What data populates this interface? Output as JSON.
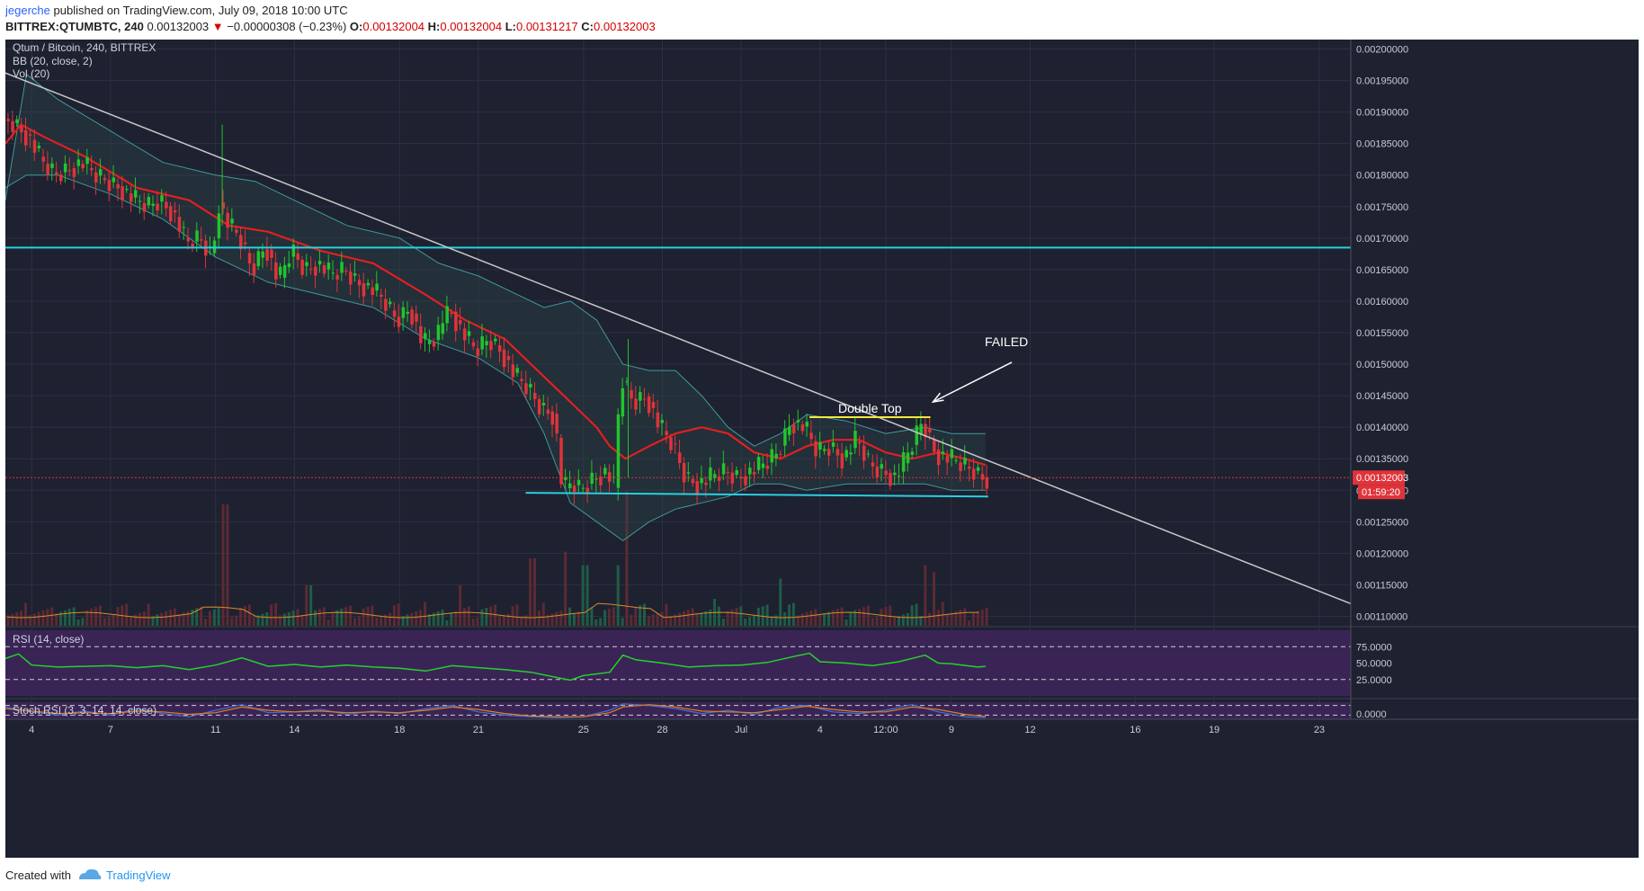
{
  "header": {
    "author": "jegerche",
    "published": "published on TradingView.com, July 09, 2018 10:00 UTC",
    "symbol": "BITTREX:QTUMBTC, 240",
    "price": "0.00132003",
    "change": "−0.00000308 (−0.23%)",
    "o_label": "O:",
    "o_value": "0.00132004",
    "h_label": "H:",
    "h_value": "0.00132004",
    "l_label": "L:",
    "l_value": "0.00131217",
    "c_label": "C:",
    "c_value": "0.00132003"
  },
  "legend": {
    "title": "Qtum / Bitcoin, 240, BITTREX",
    "bb": "BB (20, close, 2)",
    "vol": "Vol (20)",
    "rsi": "RSI (14, close)",
    "stoch": "Stoch RSI (3, 3, 14, 14, close)"
  },
  "colors": {
    "background": "#1e2130",
    "up": "#21c52b",
    "down": "#e0333a",
    "bb_basis": "#e02020",
    "bb_band": "#3f9a9a",
    "trendline": "#c8c8c8",
    "support": "#29d0e0",
    "double_top": "#f2ea3a",
    "rsi_line": "#23d22a",
    "rsi_panel": "#3a2456",
    "stoch_k": "#3f73d8",
    "stoch_d": "#e07f20",
    "price_tag": "#e0333a"
  },
  "chart_data": {
    "type": "candlestick",
    "title": "Qtum / Bitcoin, 240, BITTREX",
    "y_ticks": [
      "0.00200000",
      "0.00195000",
      "0.00190000",
      "0.00185000",
      "0.00180000",
      "0.00175000",
      "0.00170000",
      "0.00165000",
      "0.00160000",
      "0.00155000",
      "0.00150000",
      "0.00145000",
      "0.00140000",
      "0.00135000",
      "0.00130000",
      "0.00125000",
      "0.00120000",
      "0.00115000",
      "0.00110000"
    ],
    "y_tick_values": [
      0.002,
      0.00195,
      0.0019,
      0.00185,
      0.0018,
      0.00175,
      0.0017,
      0.00165,
      0.0016,
      0.00155,
      0.0015,
      0.00145,
      0.0014,
      0.00135,
      0.0013,
      0.00125,
      0.0012,
      0.00115,
      0.0011
    ],
    "ylim": [
      0.001085,
      0.002015
    ],
    "x_ticks": [
      {
        "label": "4",
        "day": 4
      },
      {
        "label": "7",
        "day": 7
      },
      {
        "label": "11",
        "day": 11
      },
      {
        "label": "14",
        "day": 14
      },
      {
        "label": "18",
        "day": 18
      },
      {
        "label": "21",
        "day": 21
      },
      {
        "label": "25",
        "day": 25
      },
      {
        "label": "28",
        "day": 28
      },
      {
        "label": "Jul",
        "day": 31
      },
      {
        "label": "4",
        "day": 34
      },
      {
        "label": "12:00",
        "day": 36.5
      },
      {
        "label": "9",
        "day": 39
      },
      {
        "label": "12",
        "day": 42
      },
      {
        "label": "16",
        "day": 46
      },
      {
        "label": "19",
        "day": 49
      },
      {
        "label": "23",
        "day": 53
      }
    ],
    "x_range_days": [
      3,
      54.2
    ],
    "last_price": "0.00132003",
    "countdown": "01:59:20",
    "candle_path": [
      [
        3.0,
        0.00189
      ],
      [
        3.5,
        0.00188
      ],
      [
        4.0,
        0.00186
      ],
      [
        4.5,
        0.00182
      ],
      [
        5.0,
        0.0018
      ],
      [
        5.5,
        0.00181
      ],
      [
        6.0,
        0.00182
      ],
      [
        6.5,
        0.0018
      ],
      [
        7.0,
        0.00179
      ],
      [
        7.5,
        0.00178
      ],
      [
        8.0,
        0.00176
      ],
      [
        8.5,
        0.00175
      ],
      [
        9.0,
        0.00176
      ],
      [
        9.5,
        0.00174
      ],
      [
        10.0,
        0.00169
      ],
      [
        10.5,
        0.0017
      ],
      [
        11.0,
        0.00167
      ],
      [
        11.2,
        0.00176
      ],
      [
        11.6,
        0.00172
      ],
      [
        12.0,
        0.0017
      ],
      [
        12.5,
        0.00165
      ],
      [
        13.0,
        0.00169
      ],
      [
        13.5,
        0.00163
      ],
      [
        14.0,
        0.00168
      ],
      [
        14.5,
        0.00165
      ],
      [
        15.0,
        0.00166
      ],
      [
        15.5,
        0.00164
      ],
      [
        16.0,
        0.00165
      ],
      [
        16.5,
        0.00163
      ],
      [
        17.0,
        0.00162
      ],
      [
        17.5,
        0.0016
      ],
      [
        18.0,
        0.00157
      ],
      [
        18.5,
        0.00159
      ],
      [
        19.0,
        0.00153
      ],
      [
        19.5,
        0.00154
      ],
      [
        20.0,
        0.00159
      ],
      [
        20.5,
        0.00155
      ],
      [
        21.0,
        0.00152
      ],
      [
        21.5,
        0.00154
      ],
      [
        22.0,
        0.00152
      ],
      [
        22.5,
        0.00148
      ],
      [
        23.0,
        0.00146
      ],
      [
        23.5,
        0.00143
      ],
      [
        24.0,
        0.00142
      ],
      [
        24.3,
        0.0013
      ],
      [
        24.7,
        0.00131
      ],
      [
        25.0,
        0.0013
      ],
      [
        25.5,
        0.00132
      ],
      [
        26.0,
        0.00133
      ],
      [
        26.3,
        0.0013
      ],
      [
        26.5,
        0.00148
      ],
      [
        27.0,
        0.00144
      ],
      [
        27.5,
        0.00145
      ],
      [
        28.0,
        0.0014
      ],
      [
        28.5,
        0.00137
      ],
      [
        29.0,
        0.00132
      ],
      [
        29.5,
        0.00131
      ],
      [
        30.0,
        0.00132
      ],
      [
        30.5,
        0.00133
      ],
      [
        31.0,
        0.00132
      ],
      [
        31.5,
        0.00133
      ],
      [
        32.0,
        0.00134
      ],
      [
        32.5,
        0.00136
      ],
      [
        33.0,
        0.00141
      ],
      [
        33.5,
        0.0014
      ],
      [
        34.0,
        0.00136
      ],
      [
        34.5,
        0.00137
      ],
      [
        35.0,
        0.00135
      ],
      [
        35.5,
        0.00138
      ],
      [
        36.0,
        0.00134
      ],
      [
        36.5,
        0.00133
      ],
      [
        37.0,
        0.00132
      ],
      [
        37.5,
        0.00136
      ],
      [
        38.0,
        0.00141
      ],
      [
        38.5,
        0.00136
      ],
      [
        39.0,
        0.00135
      ],
      [
        39.5,
        0.00134
      ],
      [
        40.0,
        0.00133
      ],
      [
        40.3,
        0.00132
      ]
    ],
    "bb_basis": [
      [
        3.0,
        0.00185
      ],
      [
        3.6,
        0.00188
      ],
      [
        4.5,
        0.00186
      ],
      [
        6.0,
        0.00183
      ],
      [
        8.0,
        0.00178
      ],
      [
        10.0,
        0.00176
      ],
      [
        11.5,
        0.00172
      ],
      [
        13.0,
        0.00171
      ],
      [
        15.0,
        0.00168
      ],
      [
        17.0,
        0.00166
      ],
      [
        19.0,
        0.00161
      ],
      [
        20.5,
        0.00157
      ],
      [
        22.0,
        0.00154
      ],
      [
        23.5,
        0.00148
      ],
      [
        24.5,
        0.00144
      ],
      [
        25.5,
        0.0014
      ],
      [
        26.0,
        0.00137
      ],
      [
        26.6,
        0.00135
      ],
      [
        27.5,
        0.00137
      ],
      [
        28.5,
        0.00139
      ],
      [
        29.5,
        0.0014
      ],
      [
        30.5,
        0.00139
      ],
      [
        31.5,
        0.00136
      ],
      [
        32.5,
        0.00135
      ],
      [
        33.5,
        0.00137
      ],
      [
        34.5,
        0.00138
      ],
      [
        35.5,
        0.00138
      ],
      [
        36.5,
        0.00136
      ],
      [
        37.5,
        0.00135
      ],
      [
        38.5,
        0.00136
      ],
      [
        39.5,
        0.00135
      ],
      [
        40.3,
        0.00134
      ]
    ],
    "bb_upper": [
      [
        3.0,
        0.00176
      ],
      [
        3.8,
        0.00196
      ],
      [
        5.0,
        0.00192
      ],
      [
        7.0,
        0.00187
      ],
      [
        9.0,
        0.00182
      ],
      [
        11.0,
        0.0018
      ],
      [
        12.5,
        0.00179
      ],
      [
        14.0,
        0.00176
      ],
      [
        16.0,
        0.00172
      ],
      [
        18.0,
        0.0017
      ],
      [
        19.5,
        0.00166
      ],
      [
        21.0,
        0.00164
      ],
      [
        22.5,
        0.00161
      ],
      [
        23.5,
        0.00159
      ],
      [
        24.5,
        0.0016
      ],
      [
        25.5,
        0.00157
      ],
      [
        26.5,
        0.0015
      ],
      [
        27.5,
        0.00149
      ],
      [
        28.5,
        0.00149
      ],
      [
        29.5,
        0.00145
      ],
      [
        30.5,
        0.0014
      ],
      [
        31.5,
        0.00137
      ],
      [
        32.5,
        0.00139
      ],
      [
        33.5,
        0.00142
      ],
      [
        35.0,
        0.00141
      ],
      [
        36.5,
        0.00139
      ],
      [
        38.0,
        0.0014
      ],
      [
        39.0,
        0.00139
      ],
      [
        40.3,
        0.00139
      ]
    ],
    "bb_lower": [
      [
        3.0,
        0.00178
      ],
      [
        3.8,
        0.0018
      ],
      [
        5.0,
        0.0018
      ],
      [
        7.0,
        0.00177
      ],
      [
        9.0,
        0.00173
      ],
      [
        11.0,
        0.00167
      ],
      [
        13.0,
        0.00163
      ],
      [
        15.0,
        0.00161
      ],
      [
        17.0,
        0.00159
      ],
      [
        19.0,
        0.00154
      ],
      [
        21.0,
        0.00151
      ],
      [
        22.5,
        0.00147
      ],
      [
        23.5,
        0.00139
      ],
      [
        24.5,
        0.00128
      ],
      [
        25.5,
        0.00125
      ],
      [
        26.5,
        0.00122
      ],
      [
        27.5,
        0.00125
      ],
      [
        28.5,
        0.00127
      ],
      [
        29.5,
        0.00128
      ],
      [
        30.5,
        0.00129
      ],
      [
        31.5,
        0.00131
      ],
      [
        32.5,
        0.00131
      ],
      [
        33.5,
        0.0013
      ],
      [
        35.0,
        0.00131
      ],
      [
        36.5,
        0.00131
      ],
      [
        38.0,
        0.00131
      ],
      [
        39.0,
        0.0013
      ],
      [
        40.3,
        0.0013
      ]
    ],
    "volume_spikes": [
      [
        11.3,
        0.9
      ],
      [
        24.2,
        0.55
      ],
      [
        25.0,
        0.45
      ],
      [
        26.3,
        0.45
      ],
      [
        26.6,
        1.0
      ],
      [
        32.5,
        0.35
      ],
      [
        38.0,
        0.45
      ],
      [
        38.3,
        0.4
      ],
      [
        23.0,
        0.5
      ],
      [
        14.5,
        0.3
      ],
      [
        20.3,
        0.3
      ],
      [
        30.0,
        0.2
      ]
    ],
    "rsi": {
      "ticks": [
        "75.0000",
        "50.0000",
        "25.0000"
      ],
      "tick_values": [
        75,
        50,
        25
      ],
      "series": [
        [
          3.0,
          57
        ],
        [
          3.5,
          64
        ],
        [
          4.0,
          47
        ],
        [
          5.0,
          44
        ],
        [
          6.0,
          45
        ],
        [
          7.0,
          46
        ],
        [
          8.0,
          43
        ],
        [
          9.0,
          46
        ],
        [
          10.0,
          40
        ],
        [
          11.0,
          47
        ],
        [
          12.0,
          58
        ],
        [
          13.0,
          45
        ],
        [
          14.0,
          48
        ],
        [
          15.0,
          44
        ],
        [
          16.0,
          47
        ],
        [
          17.0,
          44
        ],
        [
          18.0,
          42
        ],
        [
          19.0,
          38
        ],
        [
          20.0,
          46
        ],
        [
          21.0,
          43
        ],
        [
          22.0,
          40
        ],
        [
          23.0,
          36
        ],
        [
          24.0,
          28
        ],
        [
          24.5,
          24
        ],
        [
          25.0,
          31
        ],
        [
          26.0,
          36
        ],
        [
          26.5,
          62
        ],
        [
          27.0,
          55
        ],
        [
          28.0,
          50
        ],
        [
          29.0,
          44
        ],
        [
          30.0,
          46
        ],
        [
          31.0,
          47
        ],
        [
          32.0,
          51
        ],
        [
          33.0,
          60
        ],
        [
          33.6,
          65
        ],
        [
          34.0,
          52
        ],
        [
          35.0,
          50
        ],
        [
          36.0,
          46
        ],
        [
          37.0,
          52
        ],
        [
          38.0,
          62
        ],
        [
          38.5,
          50
        ],
        [
          39.0,
          49
        ],
        [
          40.0,
          44
        ],
        [
          40.3,
          45
        ]
      ],
      "ylim": [
        0,
        100
      ]
    },
    "stoch": {
      "ticks": [
        "0.0000"
      ],
      "k": [
        [
          3.0,
          70
        ],
        [
          4.0,
          40
        ],
        [
          5.0,
          20
        ],
        [
          6.0,
          45
        ],
        [
          7.0,
          20
        ],
        [
          8.0,
          60
        ],
        [
          9.0,
          30
        ],
        [
          10.0,
          10
        ],
        [
          11.0,
          50
        ],
        [
          12.0,
          85
        ],
        [
          13.0,
          35
        ],
        [
          14.0,
          40
        ],
        [
          15.0,
          55
        ],
        [
          16.0,
          25
        ],
        [
          17.0,
          45
        ],
        [
          18.0,
          30
        ],
        [
          19.0,
          60
        ],
        [
          20.0,
          80
        ],
        [
          21.0,
          40
        ],
        [
          22.0,
          20
        ],
        [
          23.0,
          10
        ],
        [
          24.0,
          5
        ],
        [
          25.0,
          10
        ],
        [
          26.0,
          50
        ],
        [
          26.5,
          90
        ],
        [
          27.5,
          80
        ],
        [
          28.5,
          60
        ],
        [
          29.5,
          30
        ],
        [
          30.5,
          50
        ],
        [
          31.5,
          25
        ],
        [
          32.5,
          70
        ],
        [
          33.5,
          80
        ],
        [
          34.5,
          40
        ],
        [
          35.5,
          30
        ],
        [
          36.5,
          50
        ],
        [
          37.5,
          85
        ],
        [
          38.5,
          40
        ],
        [
          39.5,
          10
        ],
        [
          40.3,
          5
        ]
      ],
      "d": [
        [
          3.0,
          60
        ],
        [
          4.0,
          45
        ],
        [
          5.0,
          30
        ],
        [
          6.0,
          35
        ],
        [
          7.0,
          30
        ],
        [
          8.0,
          45
        ],
        [
          9.0,
          40
        ],
        [
          10.0,
          25
        ],
        [
          11.0,
          35
        ],
        [
          12.0,
          70
        ],
        [
          13.0,
          50
        ],
        [
          14.0,
          40
        ],
        [
          15.0,
          45
        ],
        [
          16.0,
          35
        ],
        [
          17.0,
          40
        ],
        [
          18.0,
          35
        ],
        [
          19.0,
          50
        ],
        [
          20.0,
          70
        ],
        [
          21.0,
          55
        ],
        [
          22.0,
          30
        ],
        [
          23.0,
          15
        ],
        [
          24.0,
          10
        ],
        [
          25.0,
          10
        ],
        [
          26.0,
          35
        ],
        [
          26.5,
          70
        ],
        [
          27.5,
          85
        ],
        [
          28.5,
          70
        ],
        [
          29.5,
          45
        ],
        [
          30.5,
          40
        ],
        [
          31.5,
          35
        ],
        [
          32.5,
          55
        ],
        [
          33.5,
          75
        ],
        [
          34.5,
          55
        ],
        [
          35.5,
          40
        ],
        [
          36.5,
          40
        ],
        [
          37.5,
          70
        ],
        [
          38.5,
          55
        ],
        [
          39.5,
          25
        ],
        [
          40.3,
          12
        ]
      ]
    },
    "annotations": {
      "double_top_label": "Double Top",
      "failed_label": "FAILED",
      "resistance_level": 0.001685,
      "support_line": {
        "x1": 22.8,
        "x2": 40.4,
        "y1": 0.001296,
        "y2": 0.00129
      },
      "double_top_line": {
        "x1": 33.6,
        "x2": 38.2,
        "y": 0.001416
      },
      "trendline": {
        "x1": 3.0,
        "y1": 0.001962,
        "x2": 54.2,
        "y2": 0.00112
      },
      "failed_arrow": {
        "x1": 41.3,
        "y1": 0.001503,
        "x2": 38.3,
        "y2": 0.00144
      }
    }
  },
  "footer": {
    "created": "Created with",
    "brand": "TradingView"
  }
}
